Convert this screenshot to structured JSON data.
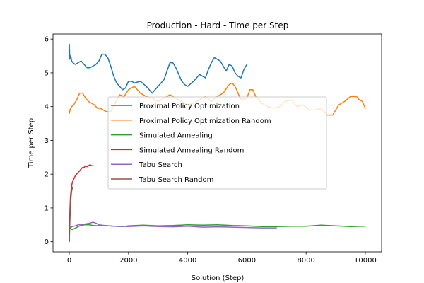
{
  "chart_data": {
    "type": "line",
    "title": "Production - Hard - Time per Step",
    "xlabel": "Solution (Step)",
    "ylabel": "Time per Step",
    "xlim": [
      -550,
      10550
    ],
    "ylim": [
      -0.3,
      6.15
    ],
    "xticks": [
      0,
      2000,
      4000,
      6000,
      8000,
      10000
    ],
    "yticks": [
      0,
      1,
      2,
      3,
      4,
      5,
      6
    ],
    "xtick_labels": [
      "0",
      "2000",
      "4000",
      "6000",
      "8000",
      "10000"
    ],
    "ytick_labels": [
      "0",
      "1",
      "2",
      "3",
      "4",
      "5",
      "6"
    ],
    "grid": false,
    "legend_position": "center",
    "series": [
      {
        "name": "Proximal Policy Optimization",
        "color": "#1f77b4",
        "x": [
          0,
          20,
          40,
          60,
          80,
          120,
          200,
          300,
          400,
          500,
          600,
          700,
          800,
          900,
          1000,
          1100,
          1200,
          1300,
          1400,
          1500,
          1600,
          1700,
          1800,
          1900,
          2000,
          2100,
          2200,
          2400,
          2600,
          2800,
          3000,
          3200,
          3300,
          3400,
          3500,
          3600,
          3700,
          3800,
          3900,
          4000,
          4200,
          4400,
          4600,
          4700,
          4800,
          4900,
          5000,
          5100,
          5200,
          5300,
          5400,
          5500,
          5600,
          5700,
          5800,
          5900,
          6000
        ],
        "y": [
          5.85,
          5.4,
          5.5,
          5.45,
          5.35,
          5.3,
          5.25,
          5.3,
          5.35,
          5.25,
          5.15,
          5.15,
          5.2,
          5.25,
          5.35,
          5.55,
          5.55,
          5.45,
          5.2,
          4.9,
          4.7,
          4.6,
          4.5,
          4.55,
          4.75,
          4.75,
          4.7,
          4.75,
          4.6,
          4.4,
          4.6,
          4.8,
          5.05,
          5.3,
          5.3,
          5.15,
          4.95,
          4.75,
          4.65,
          4.6,
          4.75,
          4.95,
          4.85,
          5.1,
          5.3,
          5.45,
          5.4,
          5.35,
          5.2,
          5.05,
          5.25,
          5.2,
          5.0,
          4.9,
          4.85,
          5.1,
          5.25
        ]
      },
      {
        "name": "Proximal Policy Optimization Random",
        "color": "#ff7f0e",
        "x": [
          0,
          40,
          80,
          150,
          250,
          350,
          450,
          550,
          650,
          750,
          850,
          950,
          1050,
          1150,
          1250,
          1400,
          1550,
          1700,
          1850,
          2000,
          2200,
          2400,
          2600,
          2800,
          3000,
          3200,
          3400,
          3600,
          3800,
          4000,
          4200,
          4400,
          4600,
          4800,
          5000,
          5200,
          5400,
          5500,
          5600,
          5700,
          5800,
          6000,
          6100,
          6200,
          6300,
          6500,
          6700,
          6900,
          7100,
          7300,
          7500,
          7700,
          7900,
          8100,
          8300,
          8500,
          8700,
          8900,
          9100,
          9300,
          9500,
          9700,
          9800,
          9900,
          10000
        ],
        "y": [
          3.8,
          3.95,
          4.0,
          4.05,
          4.2,
          4.4,
          4.4,
          4.25,
          4.15,
          4.1,
          4.05,
          3.95,
          3.95,
          3.9,
          3.85,
          3.85,
          4.1,
          4.35,
          4.3,
          4.5,
          4.6,
          4.4,
          4.3,
          4.25,
          4.15,
          4.25,
          4.35,
          4.25,
          4.15,
          4.05,
          4.1,
          4.2,
          4.3,
          4.15,
          4.3,
          4.4,
          4.65,
          4.7,
          4.6,
          4.4,
          4.2,
          4.25,
          4.5,
          4.5,
          4.3,
          4.1,
          4.0,
          3.95,
          4.0,
          4.15,
          4.2,
          4.0,
          4.05,
          3.9,
          3.9,
          3.95,
          3.75,
          3.75,
          4.05,
          4.15,
          4.3,
          4.3,
          4.2,
          4.15,
          3.95
        ]
      },
      {
        "name": "Simulated Annealing",
        "color": "#2ca02c",
        "x": [
          0,
          30,
          60,
          100,
          200,
          300,
          400,
          500,
          600,
          700,
          800,
          1000,
          1200,
          1500,
          1800,
          2000,
          2500,
          3000,
          3500,
          4000,
          4500,
          5000,
          5500,
          6000,
          6500,
          7000,
          7500,
          8000,
          8500,
          9000,
          9500,
          10000
        ],
        "y": [
          0.38,
          0.4,
          0.38,
          0.36,
          0.4,
          0.45,
          0.48,
          0.5,
          0.5,
          0.5,
          0.48,
          0.47,
          0.48,
          0.46,
          0.45,
          0.47,
          0.49,
          0.47,
          0.48,
          0.5,
          0.49,
          0.5,
          0.48,
          0.47,
          0.45,
          0.45,
          0.46,
          0.46,
          0.49,
          0.47,
          0.45,
          0.46
        ]
      },
      {
        "name": "Simulated Annealing Random",
        "color": "#d62728",
        "x": [
          0,
          20,
          40,
          70,
          100,
          150,
          200,
          250,
          300,
          350,
          400,
          450,
          500,
          550,
          600,
          650,
          700,
          750,
          800
        ],
        "y": [
          0.05,
          0.9,
          1.35,
          1.6,
          1.75,
          1.85,
          1.95,
          2.0,
          2.05,
          2.1,
          2.15,
          2.2,
          2.2,
          2.25,
          2.22,
          2.25,
          2.28,
          2.25,
          2.25
        ]
      },
      {
        "name": "Tabu Search",
        "color": "#9467bd",
        "x": [
          0,
          50,
          100,
          200,
          300,
          500,
          700,
          800,
          900,
          1000,
          1200,
          1500,
          2000,
          2500,
          3000,
          3500,
          4000,
          4500,
          5000,
          5500,
          6000,
          6500,
          7000
        ],
        "y": [
          0.45,
          0.42,
          0.45,
          0.47,
          0.5,
          0.52,
          0.55,
          0.58,
          0.55,
          0.5,
          0.48,
          0.46,
          0.45,
          0.47,
          0.45,
          0.44,
          0.46,
          0.43,
          0.44,
          0.43,
          0.42,
          0.41,
          0.41
        ]
      },
      {
        "name": "Tabu Search Random",
        "color": "#8c564b",
        "x": [
          0,
          20,
          40,
          60,
          80,
          100,
          120
        ],
        "y": [
          0.0,
          0.6,
          1.1,
          1.35,
          1.5,
          1.58,
          1.62
        ]
      }
    ]
  }
}
